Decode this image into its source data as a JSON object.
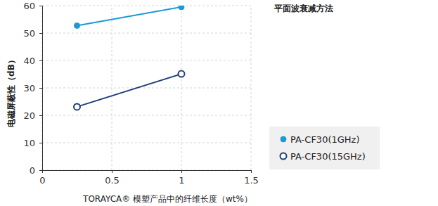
{
  "chart_data": {
    "type": "line",
    "title": "平面波衰减方法",
    "x_label": "TORAYCA® 模塑产品中的纤维长度（wt%）",
    "y_label": "电磁屏蔽性（dB）",
    "x": [
      0.25,
      1
    ],
    "series": [
      {
        "name": "PA-CF30(1GHz)",
        "color": "#1a9ad6",
        "marker": "circle",
        "values": [
          52.7,
          59.5
        ]
      },
      {
        "name": "PA-CF30(15GHz)",
        "color": "#1f3d7a",
        "marker": "open-circle",
        "values": [
          23.1,
          35.1
        ]
      }
    ],
    "xlim": [
      0,
      1.5
    ],
    "xticks": [
      0,
      0.5,
      1,
      1.5
    ],
    "ylim": [
      0,
      60
    ],
    "yticks": [
      0,
      10,
      20,
      30,
      40,
      50,
      60
    ],
    "grid": true,
    "legend": "right"
  }
}
